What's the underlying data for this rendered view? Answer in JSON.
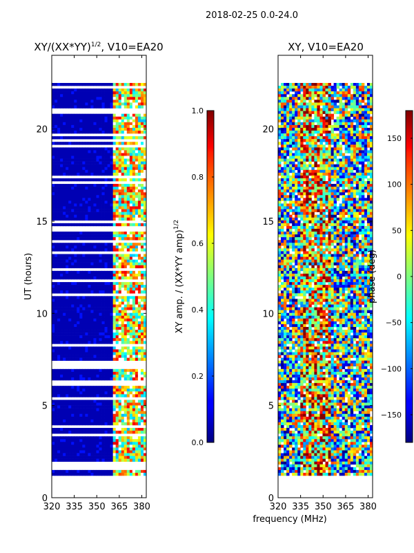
{
  "figure": {
    "suptitle": "2018-02-25 0.0-24.0",
    "xlabel_shared": "frequency (MHz)"
  },
  "chart_data": [
    {
      "type": "heatmap",
      "title_main": "XY/(XX*YY)",
      "title_sup": "1/2",
      "title_tail": ", V10=EA20",
      "xlabel": "frequency (MHz)",
      "ylabel": "UT (hours)",
      "xlim": [
        320,
        383
      ],
      "ylim": [
        0,
        24
      ],
      "xticks": [
        320,
        335,
        350,
        365,
        380
      ],
      "yticks": [
        0,
        5,
        10,
        15,
        20
      ],
      "data_rows_ut": [
        1.2,
        22.5
      ],
      "data_cols_mhz": [
        320,
        383
      ],
      "colorbar": {
        "label_main": "XY amp. / (XX*YY amp)",
        "label_sup": "1/2",
        "range": [
          0.0,
          1.0
        ],
        "ticks": [
          "0.0",
          "0.2",
          "0.4",
          "0.6",
          "0.8",
          "1.0"
        ],
        "colormap": "jet"
      }
    },
    {
      "type": "heatmap",
      "title": "XY, V10=EA20",
      "xlabel": "frequency (MHz)",
      "ylabel": "",
      "xlim": [
        320,
        383
      ],
      "ylim": [
        0,
        24
      ],
      "xticks": [
        320,
        335,
        350,
        365,
        380
      ],
      "yticks": [
        0,
        5,
        10,
        15,
        20
      ],
      "data_rows_ut": [
        1.2,
        22.5
      ],
      "data_cols_mhz": [
        320,
        383
      ],
      "colorbar": {
        "label": "phase (deg)",
        "range": [
          -180,
          180
        ],
        "ticks": [
          "−150",
          "−100",
          "−50",
          "0",
          "50",
          "100",
          "150"
        ],
        "colormap": "jet"
      }
    }
  ]
}
